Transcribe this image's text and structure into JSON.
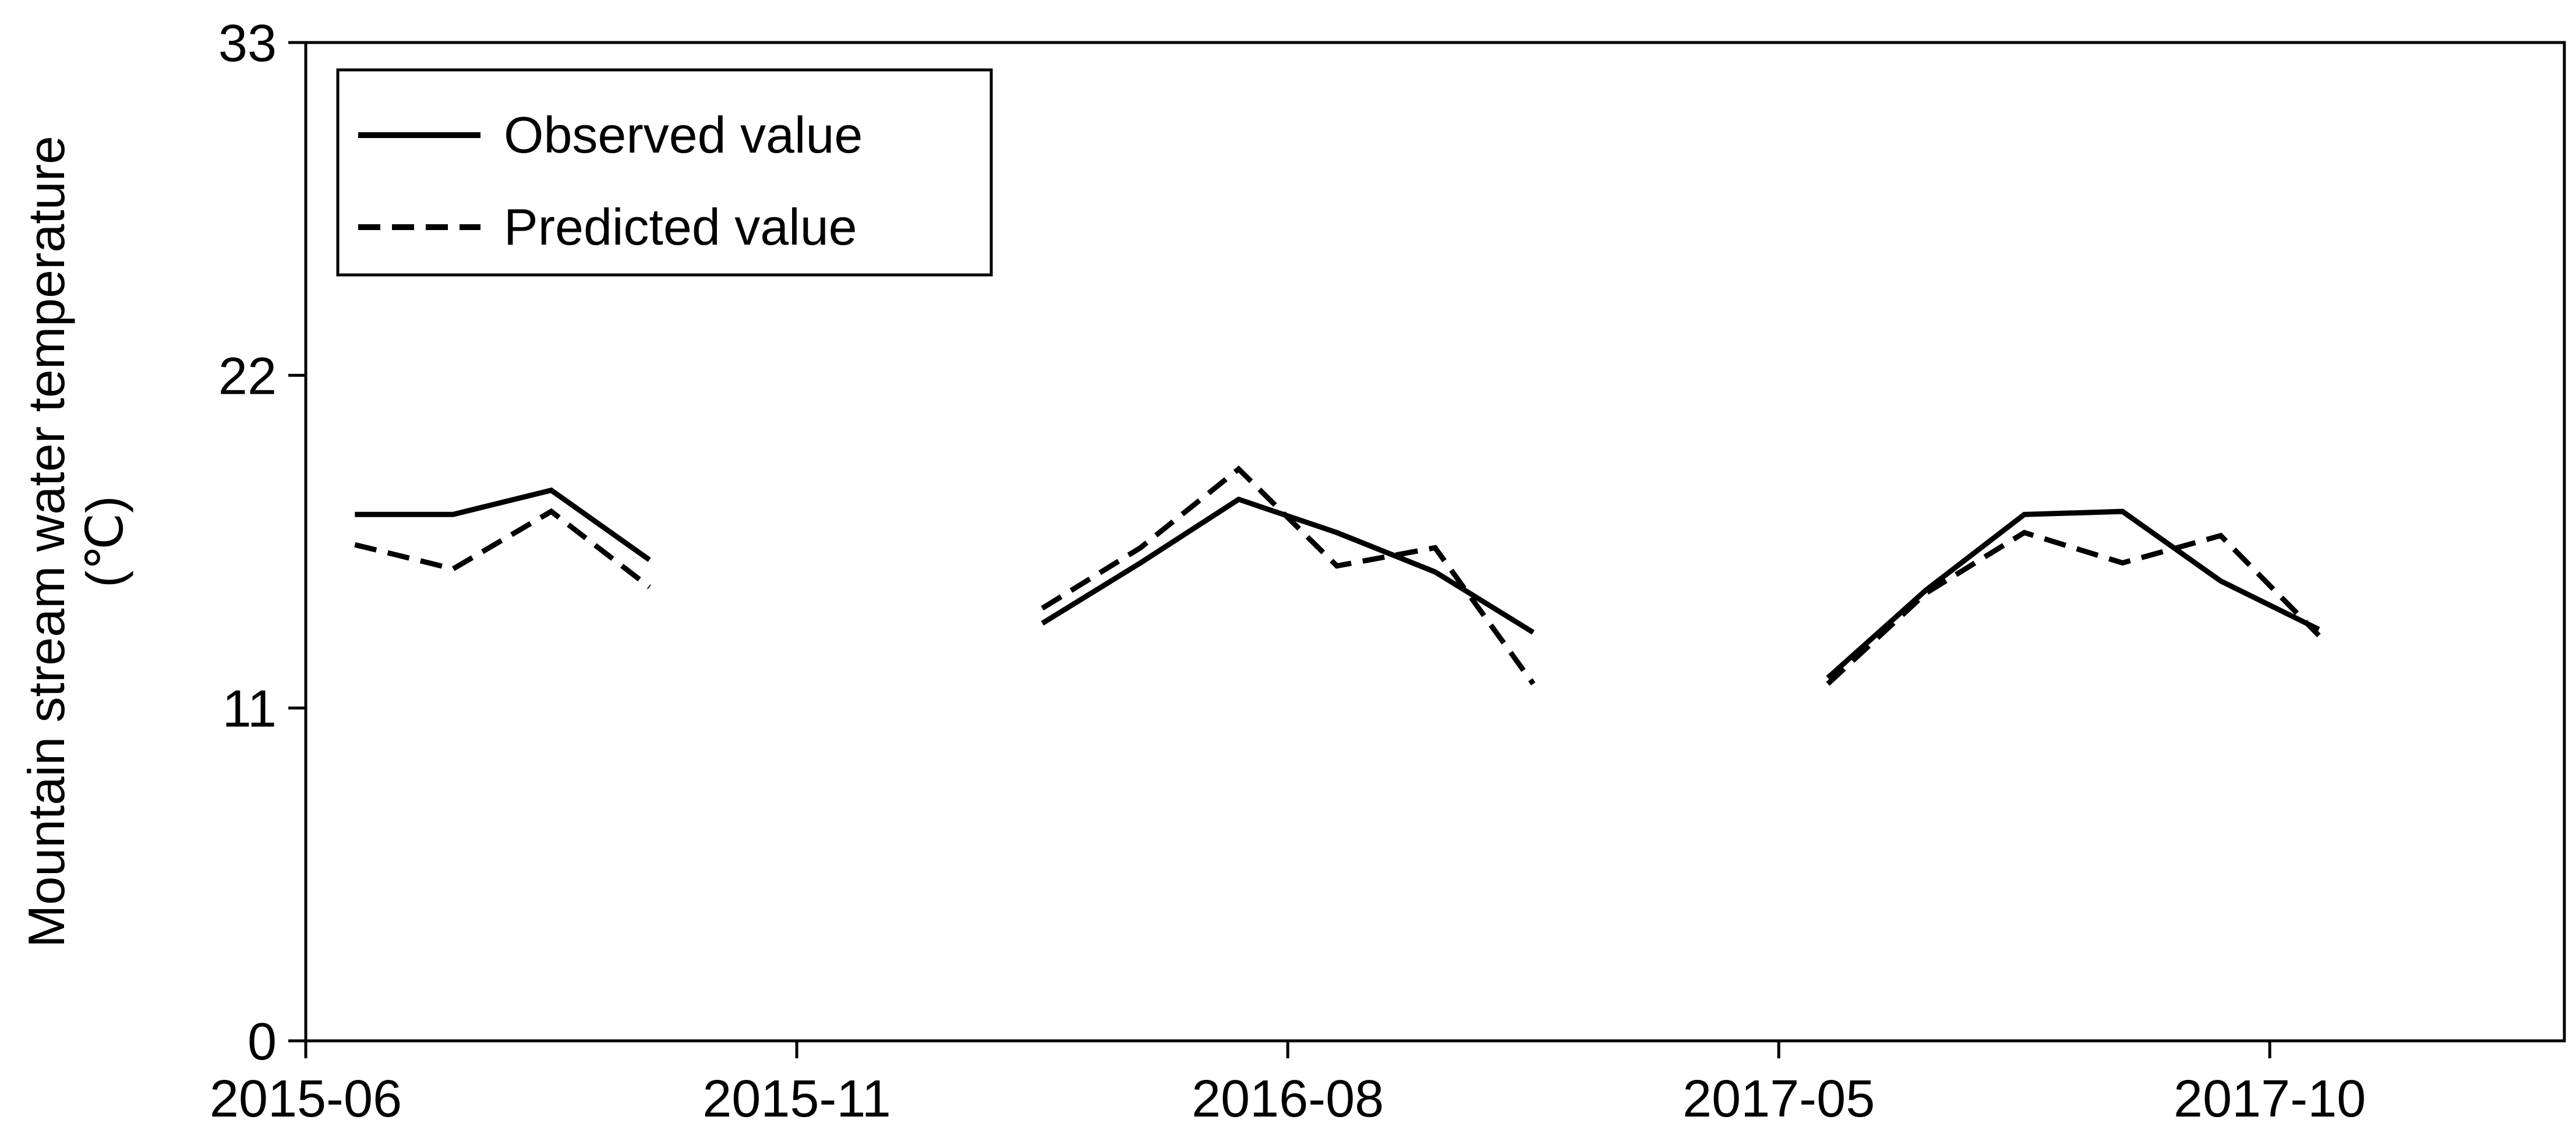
{
  "chart_data": {
    "type": "line",
    "title": "",
    "ylabel": "Mountain stream water temperature",
    "ylabel_unit": "(℃)",
    "xlabel": "",
    "ylim": [
      0,
      33
    ],
    "yticks": [
      0,
      11,
      22,
      33
    ],
    "xticks": [
      {
        "label": "2015-06",
        "x": 0
      },
      {
        "label": "2015-11",
        "x": 5
      },
      {
        "label": "2016-08",
        "x": 10
      },
      {
        "label": "2017-05",
        "x": 15
      },
      {
        "label": "2017-10",
        "x": 20
      }
    ],
    "xlim": [
      0,
      23
    ],
    "grid": false,
    "legend_position": "top-left",
    "series": [
      {
        "name": "Observed value",
        "style": "solid",
        "color": "#000000",
        "segments": [
          [
            [
              0.5,
              17.4
            ],
            [
              1.5,
              17.4
            ],
            [
              2.5,
              18.2
            ],
            [
              3.5,
              15.9
            ]
          ],
          [
            [
              7.5,
              13.8
            ],
            [
              8.5,
              15.8
            ],
            [
              9.5,
              17.9
            ],
            [
              10.5,
              16.8
            ],
            [
              11.5,
              15.5
            ],
            [
              12.5,
              13.5
            ]
          ],
          [
            [
              15.5,
              12.0
            ],
            [
              16.5,
              14.9
            ],
            [
              17.5,
              17.4
            ],
            [
              18.5,
              17.5
            ],
            [
              19.5,
              15.2
            ],
            [
              20.5,
              13.6
            ]
          ]
        ]
      },
      {
        "name": "Predicted value",
        "style": "dashed",
        "color": "#000000",
        "segments": [
          [
            [
              0.5,
              16.4
            ],
            [
              1.5,
              15.6
            ],
            [
              2.5,
              17.5
            ],
            [
              3.5,
              15.0
            ]
          ],
          [
            [
              7.5,
              14.3
            ],
            [
              8.5,
              16.3
            ],
            [
              9.5,
              18.9
            ],
            [
              10.5,
              15.7
            ],
            [
              11.5,
              16.3
            ],
            [
              12.5,
              11.8
            ]
          ],
          [
            [
              15.5,
              11.8
            ],
            [
              16.5,
              14.8
            ],
            [
              17.5,
              16.8
            ],
            [
              18.5,
              15.8
            ],
            [
              19.5,
              16.7
            ],
            [
              20.5,
              13.4
            ]
          ]
        ]
      }
    ]
  }
}
